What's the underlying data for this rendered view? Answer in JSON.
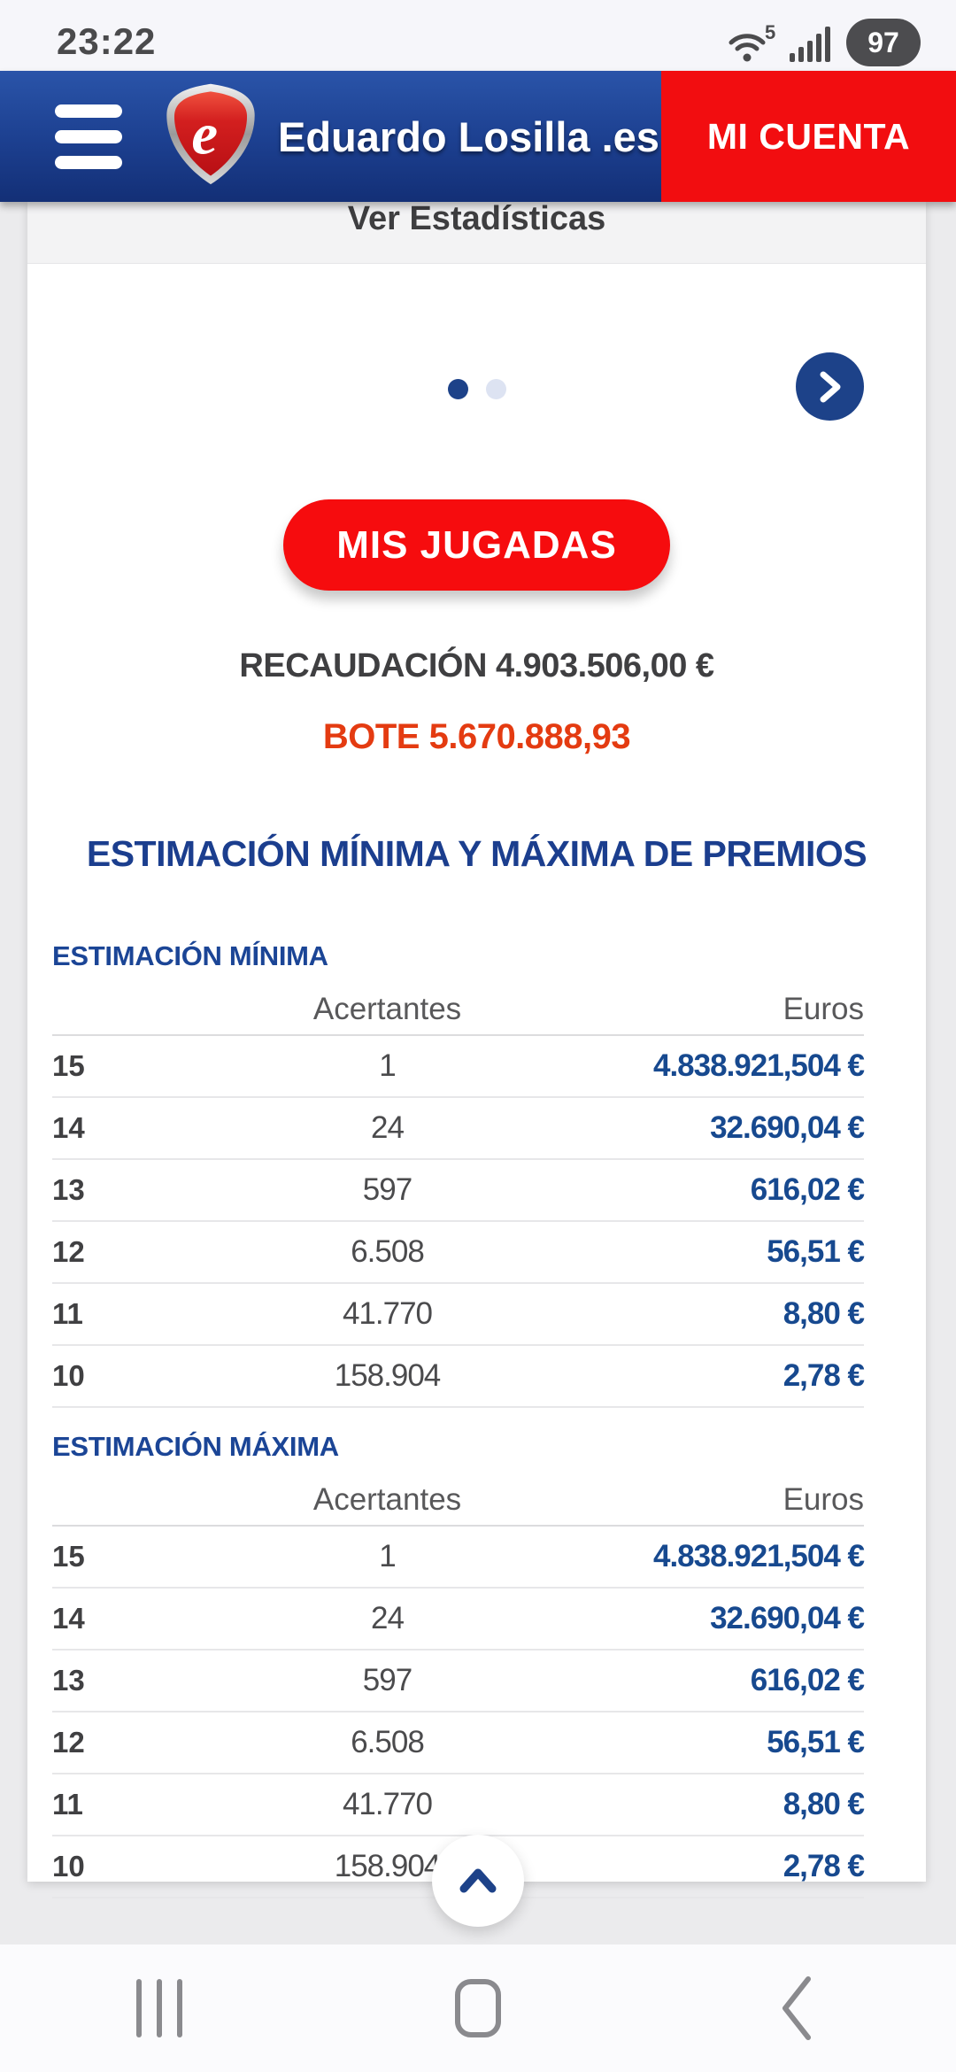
{
  "status_bar": {
    "time": "23:22",
    "wifi_badge": "5",
    "battery_level": "97"
  },
  "header": {
    "brand": "Eduardo Losilla .es",
    "logo_letter": "e",
    "account_label": "MI CUENTA"
  },
  "stats_link_label": "Ver Estadísticas",
  "carousel": {
    "pages": 2,
    "active_page": 1
  },
  "cta_label": "MIS JUGADAS",
  "recaudacion_label": "RECAUDACIÓN 4.903.506,00 €",
  "bote_label": "BOTE 5.670.888,93",
  "section_title": "ESTIMACIÓN MÍNIMA Y MÁXIMA DE PREMIOS",
  "tables": [
    {
      "label": "ESTIMACIÓN MÍNIMA",
      "columns": {
        "acertantes": "Acertantes",
        "euros": "Euros"
      },
      "rows": [
        [
          "15",
          "1",
          "4.838.921,504 €"
        ],
        [
          "14",
          "24",
          "32.690,04 €"
        ],
        [
          "13",
          "597",
          "616,02 €"
        ],
        [
          "12",
          "6.508",
          "56,51 €"
        ],
        [
          "11",
          "41.770",
          "8,80 €"
        ],
        [
          "10",
          "158.904",
          "2,78 €"
        ]
      ]
    },
    {
      "label": "ESTIMACIÓN MÁXIMA",
      "columns": {
        "acertantes": "Acertantes",
        "euros": "Euros"
      },
      "rows": [
        [
          "15",
          "1",
          "4.838.921,504 €"
        ],
        [
          "14",
          "24",
          "32.690,04 €"
        ],
        [
          "13",
          "597",
          "616,02 €"
        ],
        [
          "12",
          "6.508",
          "56,51 €"
        ],
        [
          "11",
          "41.770",
          "8,80 €"
        ],
        [
          "10",
          "158.904",
          "2,78 €"
        ]
      ]
    }
  ],
  "colors": {
    "header_blue": "#1c3f8f",
    "accent_blue": "#1d4289",
    "account_red": "#f20d10",
    "cta_red": "#f60c0e",
    "bote_red": "#e43b11",
    "euros_blue": "#17498f"
  }
}
